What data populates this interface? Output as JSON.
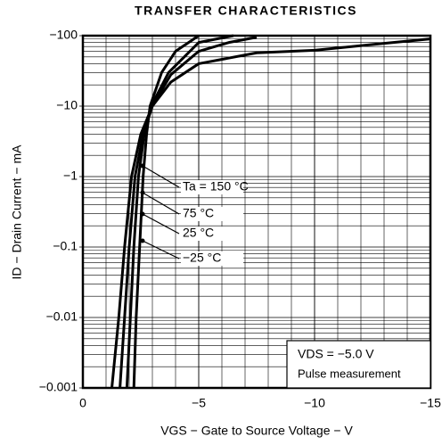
{
  "chart_data": {
    "type": "line",
    "title": "TRANSFER CHARACTERISTICS",
    "x_label": "VGS − Gate to Source Voltage − V",
    "y_label": "ID − Drain Current − mA",
    "annotations": [
      "VDS = −5.0 V",
      "Pulse measurement"
    ],
    "xlim": [
      0,
      -15
    ],
    "xticks": [
      0,
      {
        "value": -5,
        "label": "−5"
      },
      {
        "value": -10,
        "label": "−10"
      },
      {
        "value": -15,
        "label": "−15"
      }
    ],
    "ylim": [
      -0.001,
      -100
    ],
    "yticks": [
      {
        "value": -100,
        "label": "−100"
      },
      {
        "value": -10,
        "label": "−10"
      },
      {
        "value": -1,
        "label": "−1"
      },
      {
        "value": -0.1,
        "label": "−0.1"
      },
      {
        "value": -0.01,
        "label": "−0.01"
      },
      {
        "value": -0.001,
        "label": "−0.001"
      }
    ],
    "log_y": true,
    "grid": true,
    "series": [
      {
        "name": "Ta = 150 °C",
        "color": "#000000",
        "x": [
          -1.25,
          -1.55,
          -1.8,
          -2.1,
          -2.5,
          -3.0,
          -3.8,
          -5,
          -7.5,
          -10,
          -12.5,
          -15
        ],
        "values": [
          -0.001,
          -0.01,
          -0.1,
          -1,
          -4,
          -10,
          -22,
          -40,
          -57,
          -62,
          -75,
          -90
        ]
      },
      {
        "name": "75 °C",
        "color": "#000000",
        "x": [
          -1.6,
          -1.8,
          -2.0,
          -2.25,
          -2.6,
          -3.0,
          -3.8,
          -5,
          -6.3,
          -7.5
        ],
        "values": [
          -0.001,
          -0.01,
          -0.1,
          -1,
          -4,
          -10,
          -28,
          -60,
          -80,
          -95
        ]
      },
      {
        "name": "25 °C",
        "color": "#000000",
        "x": [
          -1.9,
          -2.05,
          -2.2,
          -2.4,
          -2.65,
          -2.95,
          -3.7,
          -5,
          -6.5
        ],
        "values": [
          -0.001,
          -0.01,
          -0.1,
          -1,
          -4,
          -10,
          -30,
          -80,
          -100
        ]
      },
      {
        "name": "−25 °C",
        "color": "#000000",
        "x": [
          -2.2,
          -2.3,
          -2.45,
          -2.6,
          -2.75,
          -2.9,
          -3.4,
          -4,
          -5
        ],
        "values": [
          -0.001,
          -0.01,
          -0.1,
          -1,
          -4,
          -10,
          -30,
          -60,
          -100
        ]
      }
    ]
  }
}
